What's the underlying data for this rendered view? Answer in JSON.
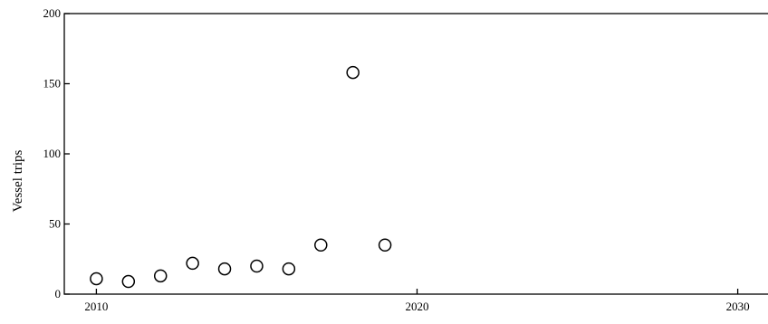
{
  "chart_data": {
    "type": "scatter",
    "title": "",
    "xlabel": "",
    "ylabel": "Vessel trips",
    "xlim": [
      2009,
      2031
    ],
    "ylim": [
      0,
      200
    ],
    "x_ticks": [
      2010,
      2020,
      2030
    ],
    "y_ticks": [
      0,
      50,
      100,
      150,
      200
    ],
    "grid": false,
    "legend": "none",
    "marker": "open-circle",
    "colors": {
      "marker_stroke": "#000000",
      "axis": "#000000"
    },
    "series": [
      {
        "x": [
          2010,
          2011,
          2012,
          2013,
          2014,
          2015,
          2016,
          2017,
          2018,
          2019
        ],
        "y": [
          11,
          9,
          13,
          22,
          18,
          20,
          18,
          35,
          158,
          35
        ]
      }
    ]
  }
}
